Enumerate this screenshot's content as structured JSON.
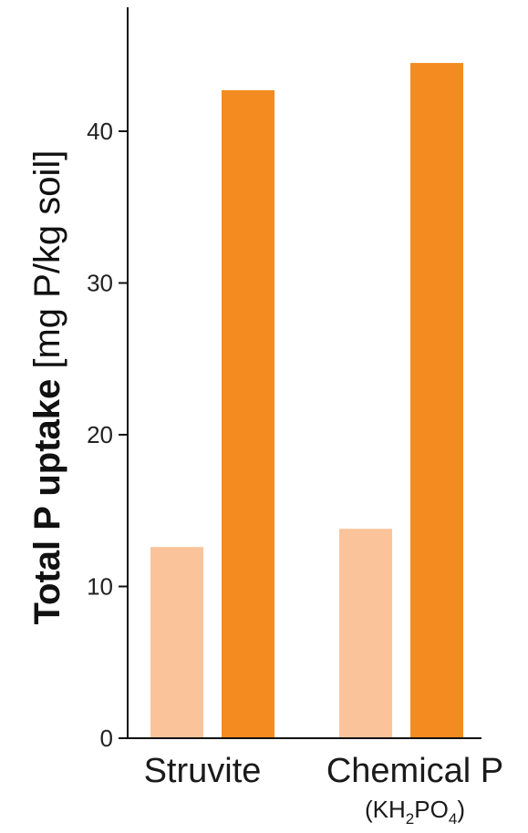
{
  "chart_data": {
    "type": "bar",
    "ylabel_bold": "Total P uptake",
    "ylabel_rest": " [mg P/kg soil]",
    "categories": [
      {
        "label": "Struvite",
        "sublabel_parts": []
      },
      {
        "label": "Chemical P",
        "sublabel_parts": [
          {
            "t": "(KH",
            "sub": false
          },
          {
            "t": "2",
            "sub": true
          },
          {
            "t": "PO",
            "sub": false
          },
          {
            "t": "4",
            "sub": true
          },
          {
            "t": ")",
            "sub": false
          }
        ]
      }
    ],
    "series": [
      {
        "color": "#FBC39A",
        "values": [
          12.6,
          13.8
        ]
      },
      {
        "color": "#F48B20",
        "values": [
          42.7,
          44.5
        ]
      }
    ],
    "yticks": [
      0,
      10,
      20,
      30,
      40
    ],
    "ylim": [
      0,
      48
    ],
    "grid": false
  }
}
